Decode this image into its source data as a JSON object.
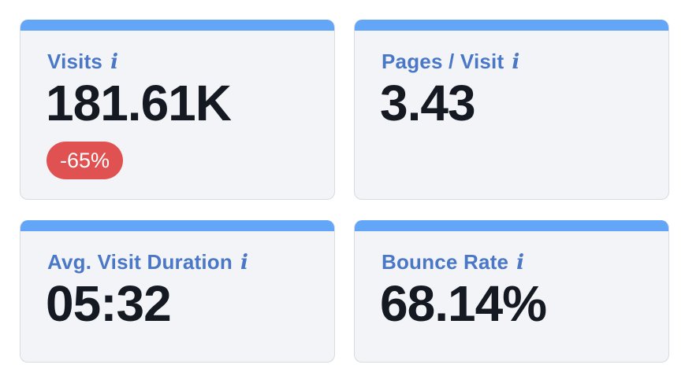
{
  "cards": [
    {
      "label": "Visits",
      "value": "181.61K",
      "change": "-65%"
    },
    {
      "label": "Pages / Visit",
      "value": "3.43"
    },
    {
      "label": "Avg. Visit Duration",
      "value": "05:32"
    },
    {
      "label": "Bounce Rate",
      "value": "68.14%"
    }
  ],
  "icons": {
    "info": "info-icon"
  },
  "colors": {
    "accent_bar": "#63a6f7",
    "label": "#4a77c6",
    "value": "#151922",
    "negative_badge": "#e05252",
    "card_bg": "#f3f4f8"
  }
}
